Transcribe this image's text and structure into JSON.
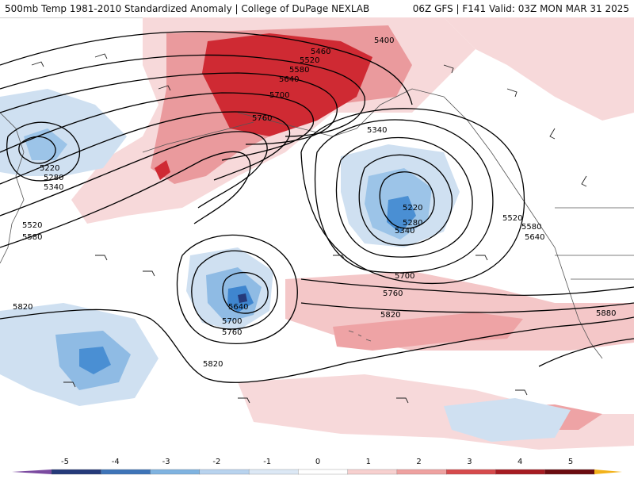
{
  "header": {
    "product": "500mb Temp 1981-2010 Standardized Anomaly | College of DuPage NEXLAB",
    "run_info": "06Z GFS | F141 Valid: 03Z MON MAR 31 2025"
  },
  "contour_labels": [
    "5400",
    "5460",
    "5520",
    "5580",
    "5640",
    "5700",
    "5760",
    "5220",
    "5280",
    "5340",
    "5520",
    "5580",
    "5340",
    "5220",
    "5280",
    "5340",
    "5520",
    "5580",
    "5640",
    "5700",
    "5760",
    "5820",
    "5640",
    "5700",
    "5760",
    "5820",
    "5820",
    "5880"
  ],
  "scale": {
    "labels": [
      "-5",
      "-4",
      "-3",
      "-2",
      "-1",
      "0",
      "1",
      "2",
      "3",
      "4",
      "5"
    ],
    "colors": [
      "#7b4aa0",
      "#253a7a",
      "#3e74b8",
      "#7fb3e0",
      "#b8d3ee",
      "#dce8f5",
      "#ffffff",
      "#f7d0cf",
      "#eea1a0",
      "#d64a4c",
      "#a61c22",
      "#6b0c10",
      "#f2b21a"
    ]
  },
  "colors": {
    "warm_strong": "#c8202a",
    "warm_mid": "#e6878b",
    "warm_light": "#f6cfd0",
    "cool_light": "#c9dcef",
    "cool_mid": "#8fbbe4",
    "cool_strong": "#3f86cf",
    "contour": "#000000"
  }
}
